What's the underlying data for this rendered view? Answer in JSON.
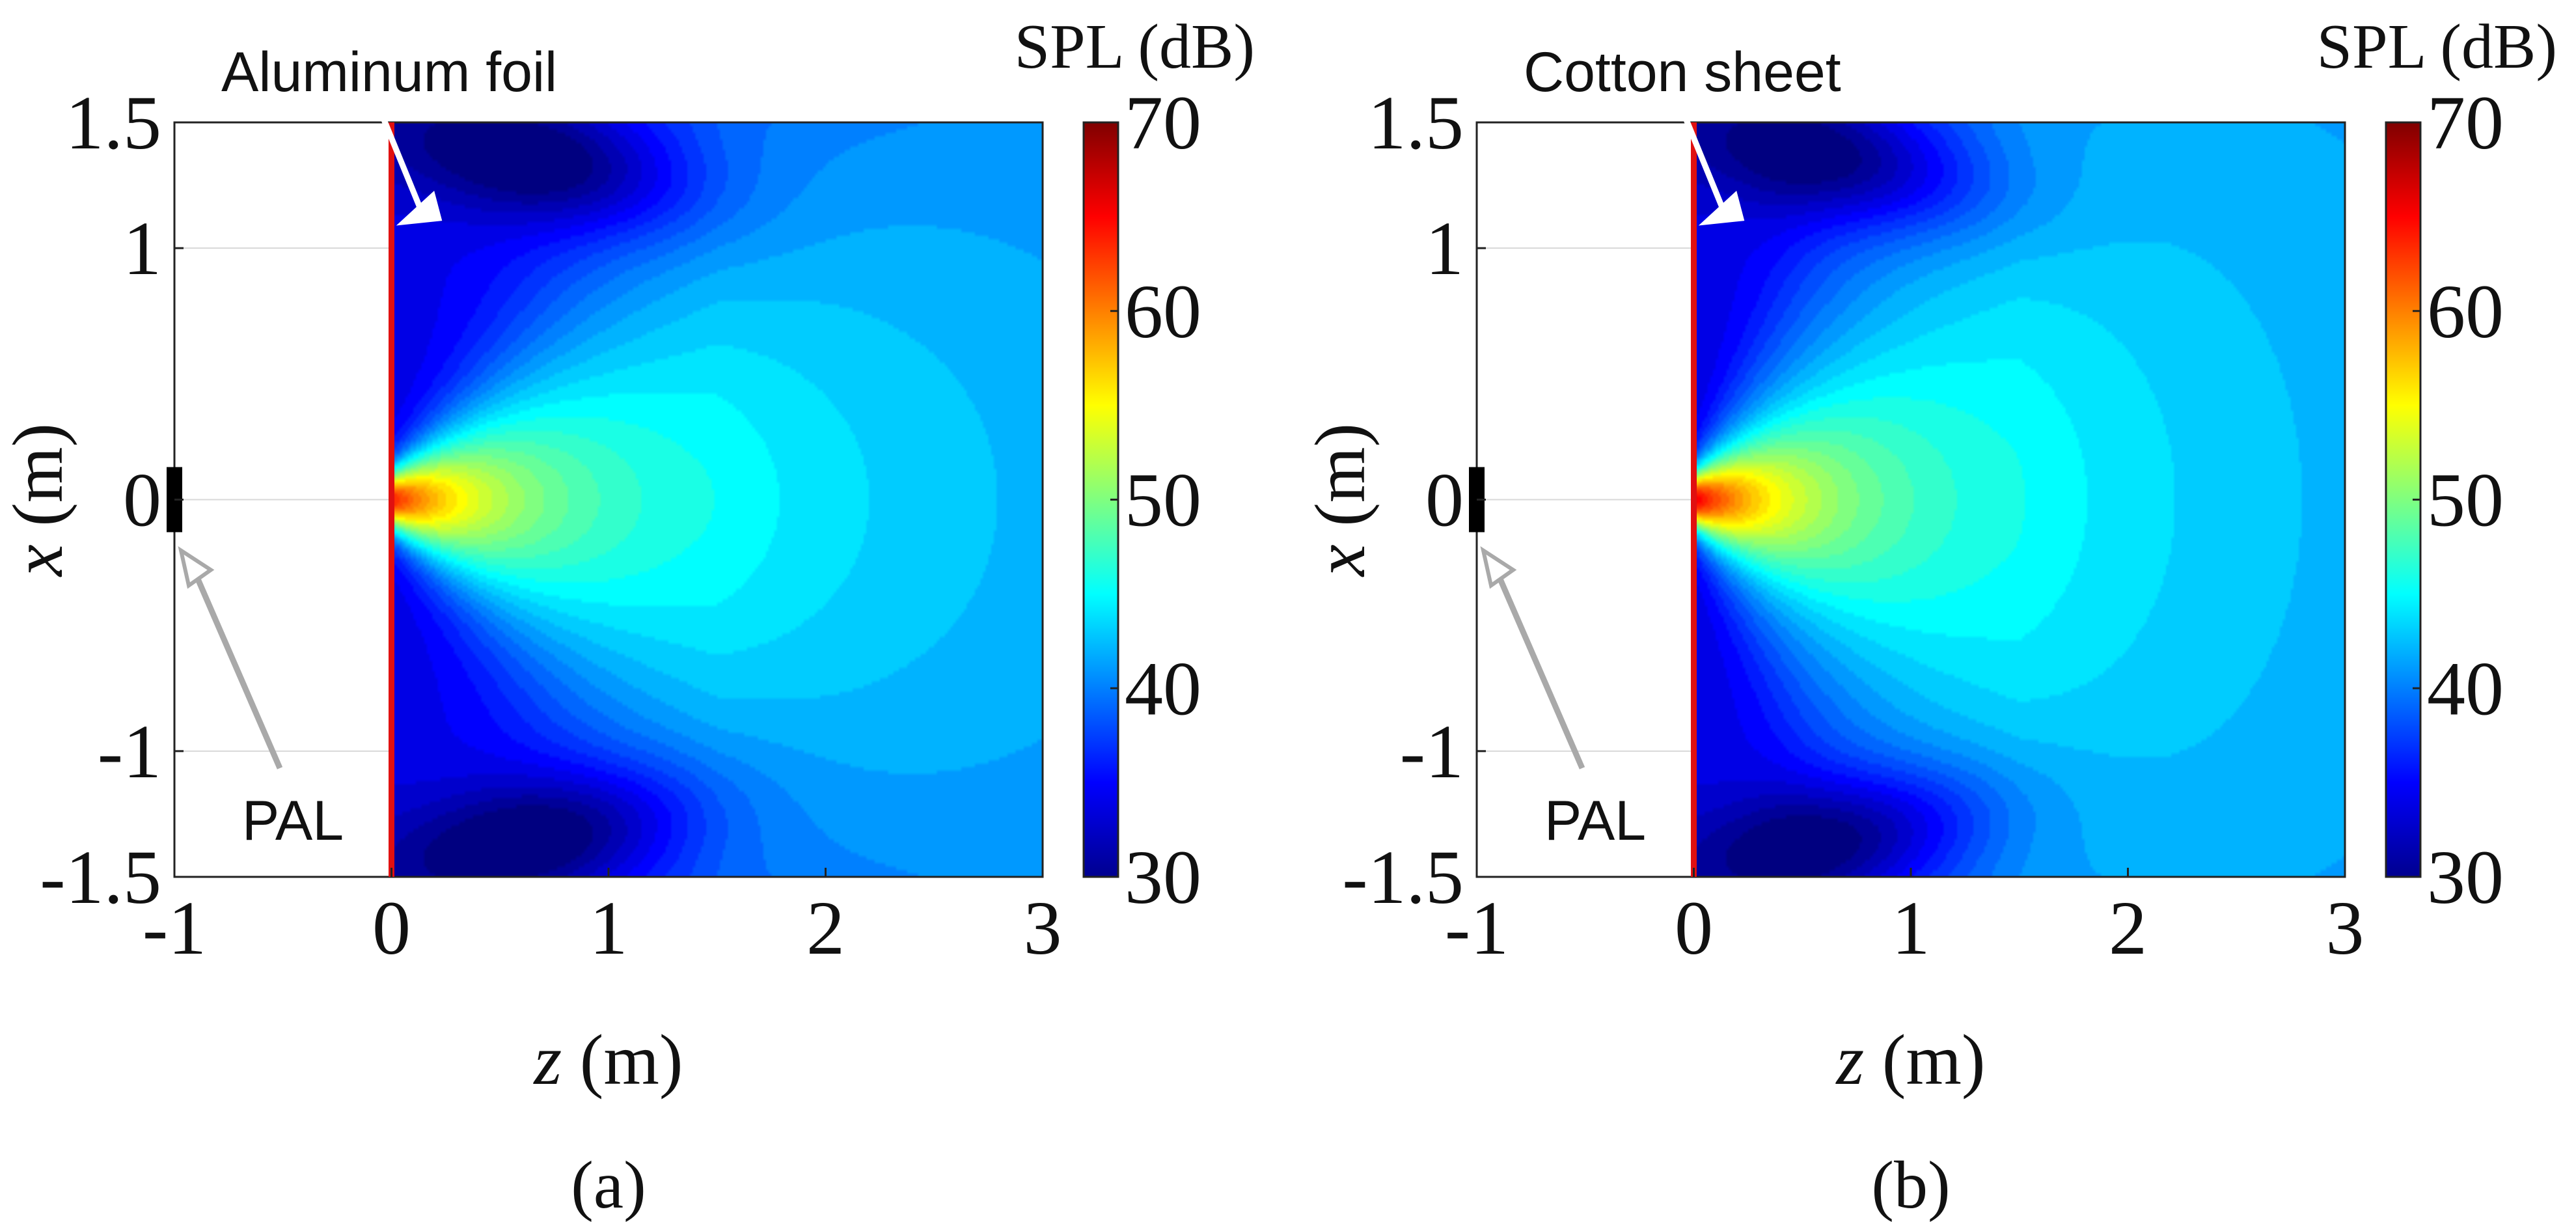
{
  "panels": [
    {
      "id": "a",
      "caption": "(a)",
      "annotation_label": "Aluminum foil",
      "source_label": "PAL",
      "beam_spread": 0.55,
      "colorbar_label": "SPL (dB)"
    },
    {
      "id": "b",
      "caption": "(b)",
      "annotation_label": "Cotton sheet",
      "source_label": "PAL",
      "beam_spread": 0.85,
      "colorbar_label": "SPL (dB)"
    }
  ],
  "chart_data": [
    {
      "type": "heatmap",
      "xlabel_var": "z",
      "xlabel_unit": "(m)",
      "ylabel_var": "x",
      "ylabel_unit": "(m)",
      "xlim": [
        -1,
        3
      ],
      "ylim": [
        -1.5,
        1.5
      ],
      "x_ticks": [
        "-1",
        "0",
        "1",
        "2",
        "3"
      ],
      "x_tick_values": [
        -1,
        0,
        1,
        2,
        3
      ],
      "y_ticks": [
        "1.5",
        "1",
        "0",
        "-1",
        "-1.5"
      ],
      "y_tick_values": [
        1.5,
        1,
        0,
        -1,
        -1.5
      ],
      "colorbar": {
        "label": "SPL (dB)",
        "range": [
          30,
          70
        ],
        "ticks": [
          "70",
          "60",
          "50",
          "40",
          "30"
        ],
        "tick_values": [
          70,
          60,
          50,
          40,
          30
        ]
      },
      "field_region": {
        "z_start": 0,
        "z_end": 3
      },
      "sheet": {
        "material": "Aluminum foil",
        "z": 0,
        "x_range": [
          -1.5,
          1.5
        ],
        "color": "#e01010"
      },
      "source": {
        "label": "PAL",
        "z": -1,
        "x": 0
      },
      "peak_spl": 62,
      "grid": true
    },
    {
      "type": "heatmap",
      "xlabel_var": "z",
      "xlabel_unit": "(m)",
      "ylabel_var": "x",
      "ylabel_unit": "(m)",
      "xlim": [
        -1,
        3
      ],
      "ylim": [
        -1.5,
        1.5
      ],
      "x_ticks": [
        "-1",
        "0",
        "1",
        "2",
        "3"
      ],
      "x_tick_values": [
        -1,
        0,
        1,
        2,
        3
      ],
      "y_ticks": [
        "1.5",
        "1",
        "0",
        "-1",
        "-1.5"
      ],
      "y_tick_values": [
        1.5,
        1,
        0,
        -1,
        -1.5
      ],
      "colorbar": {
        "label": "SPL (dB)",
        "range": [
          30,
          70
        ],
        "ticks": [
          "70",
          "60",
          "50",
          "40",
          "30"
        ],
        "tick_values": [
          70,
          60,
          50,
          40,
          30
        ]
      },
      "field_region": {
        "z_start": 0,
        "z_end": 3
      },
      "sheet": {
        "material": "Cotton sheet",
        "z": 0,
        "x_range": [
          -1.5,
          1.5
        ],
        "color": "#e01010"
      },
      "source": {
        "label": "PAL",
        "z": -1,
        "x": 0
      },
      "peak_spl": 64,
      "grid": true
    }
  ]
}
